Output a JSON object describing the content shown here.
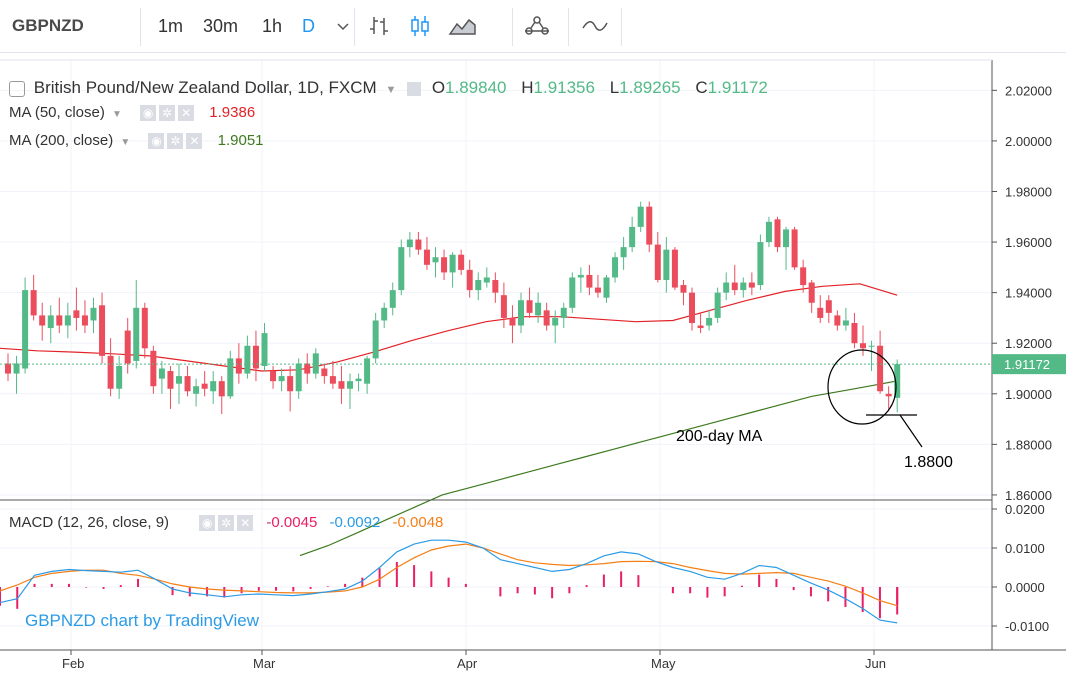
{
  "toolbar": {
    "symbol": "GBPNZD",
    "intervals": [
      {
        "label": "1m",
        "active": false
      },
      {
        "label": "30m",
        "active": false
      },
      {
        "label": "1h",
        "active": false
      },
      {
        "label": "D",
        "active": true
      }
    ],
    "icons": [
      "chevron-down-icon",
      "bar-style-icon",
      "candle-style-icon",
      "area-style-icon",
      "indicators-icon",
      "compare-icon"
    ]
  },
  "legend": {
    "title": "British Pound/New Zealand Dollar, 1D, FXCM",
    "o_label": "O",
    "o_value": "1.89840",
    "h_label": "H",
    "h_value": "1.91356",
    "l_label": "L",
    "l_value": "1.89265",
    "c_label": "C",
    "c_value": "1.91172",
    "ma50_label": "MA (50, close)",
    "ma50_value": "1.9386",
    "ma200_label": "MA (200, close)",
    "ma200_value": "1.9051",
    "macd_label": "MACD (12, 26, close, 9)",
    "macd_hist": "-0.0045",
    "macd_line": "-0.0092",
    "macd_signal": "-0.0048"
  },
  "colors": {
    "up": "#53b987",
    "down": "#eb4d5c",
    "ma50": "#e32227",
    "ma200": "#3d7a1f",
    "macd_line": "#2b9be6",
    "macd_signal": "#f57f17",
    "hist": "#e91e63",
    "watermark": "#2b9be6"
  },
  "annotations": {
    "ma200_note": "200-day MA",
    "support_level": "1.8800",
    "watermark": "GBPNZD chart by TradingView"
  },
  "chart_data": [
    {
      "type": "candlestick",
      "title": "British Pound/New Zealand Dollar, 1D, FXCM",
      "x_ticks": [
        "Feb",
        "Mar",
        "Apr",
        "May",
        "Jun"
      ],
      "y_ticks": [
        "2.02000",
        "2.00000",
        "1.98000",
        "1.96000",
        "1.94000",
        "1.92000",
        "1.90000",
        "1.88000",
        "1.86000"
      ],
      "ylim": [
        1.858,
        2.032
      ],
      "last_price_label": "1.91172",
      "candles": [
        [
          1.912,
          1.916,
          1.905,
          1.908
        ],
        [
          1.908,
          1.915,
          1.9,
          1.912
        ],
        [
          1.91,
          1.946,
          1.908,
          1.941
        ],
        [
          1.941,
          1.947,
          1.929,
          1.931
        ],
        [
          1.931,
          1.936,
          1.921,
          1.927
        ],
        [
          1.926,
          1.935,
          1.92,
          1.931
        ],
        [
          1.931,
          1.938,
          1.924,
          1.927
        ],
        [
          1.927,
          1.936,
          1.922,
          1.931
        ],
        [
          1.933,
          1.942,
          1.925,
          1.93
        ],
        [
          1.931,
          1.937,
          1.924,
          1.927
        ],
        [
          1.929,
          1.938,
          1.924,
          1.934
        ],
        [
          1.935,
          1.94,
          1.912,
          1.915
        ],
        [
          1.915,
          1.922,
          1.899,
          1.902
        ],
        [
          1.902,
          1.915,
          1.898,
          1.911
        ],
        [
          1.925,
          1.93,
          1.908,
          1.912
        ],
        [
          1.913,
          1.945,
          1.91,
          1.934
        ],
        [
          1.934,
          1.936,
          1.914,
          1.918
        ],
        [
          1.917,
          1.919,
          1.9,
          1.903
        ],
        [
          1.906,
          1.913,
          1.9,
          1.91
        ],
        [
          1.909,
          1.911,
          1.894,
          1.902
        ],
        [
          1.904,
          1.912,
          1.896,
          1.907
        ],
        [
          1.907,
          1.911,
          1.899,
          1.901
        ],
        [
          1.9,
          1.906,
          1.895,
          1.903
        ],
        [
          1.904,
          1.909,
          1.899,
          1.902
        ],
        [
          1.901,
          1.909,
          1.896,
          1.905
        ],
        [
          1.905,
          1.907,
          1.892,
          1.899
        ],
        [
          1.899,
          1.917,
          1.898,
          1.914
        ],
        [
          1.914,
          1.92,
          1.904,
          1.908
        ],
        [
          1.908,
          1.923,
          1.906,
          1.919
        ],
        [
          1.919,
          1.925,
          1.905,
          1.91
        ],
        [
          1.911,
          1.928,
          1.909,
          1.924
        ],
        [
          1.909,
          1.911,
          1.902,
          1.905
        ],
        [
          1.905,
          1.91,
          1.901,
          1.907
        ],
        [
          1.907,
          1.911,
          1.893,
          1.901
        ],
        [
          1.901,
          1.914,
          1.898,
          1.912
        ],
        [
          1.912,
          1.916,
          1.904,
          1.908
        ],
        [
          1.908,
          1.918,
          1.906,
          1.916
        ],
        [
          1.91,
          1.912,
          1.904,
          1.907
        ],
        [
          1.907,
          1.913,
          1.902,
          1.904
        ],
        [
          1.905,
          1.911,
          1.896,
          1.902
        ],
        [
          1.902,
          1.908,
          1.894,
          1.905
        ],
        [
          1.905,
          1.908,
          1.901,
          1.906
        ],
        [
          1.904,
          1.915,
          1.9,
          1.914
        ],
        [
          1.914,
          1.932,
          1.912,
          1.929
        ],
        [
          1.929,
          1.936,
          1.926,
          1.934
        ],
        [
          1.934,
          1.944,
          1.931,
          1.941
        ],
        [
          1.941,
          1.961,
          1.939,
          1.958
        ],
        [
          1.958,
          1.964,
          1.954,
          1.961
        ],
        [
          1.961,
          1.964,
          1.955,
          1.957
        ],
        [
          1.957,
          1.962,
          1.949,
          1.951
        ],
        [
          1.952,
          1.958,
          1.946,
          1.954
        ],
        [
          1.954,
          1.957,
          1.945,
          1.948
        ],
        [
          1.948,
          1.956,
          1.942,
          1.955
        ],
        [
          1.955,
          1.957,
          1.947,
          1.949
        ],
        [
          1.949,
          1.953,
          1.938,
          1.941
        ],
        [
          1.941,
          1.948,
          1.937,
          1.945
        ],
        [
          1.944,
          1.95,
          1.942,
          1.946
        ],
        [
          1.945,
          1.948,
          1.936,
          1.94
        ],
        [
          1.939,
          1.944,
          1.926,
          1.93
        ],
        [
          1.93,
          1.935,
          1.92,
          1.927
        ],
        [
          1.927,
          1.94,
          1.924,
          1.937
        ],
        [
          1.937,
          1.942,
          1.93,
          1.932
        ],
        [
          1.931,
          1.94,
          1.928,
          1.936
        ],
        [
          1.933,
          1.936,
          1.925,
          1.927
        ],
        [
          1.927,
          1.933,
          1.92,
          1.93
        ],
        [
          1.93,
          1.936,
          1.926,
          1.934
        ],
        [
          1.934,
          1.948,
          1.932,
          1.946
        ],
        [
          1.946,
          1.95,
          1.94,
          1.947
        ],
        [
          1.947,
          1.951,
          1.939,
          1.942
        ],
        [
          1.942,
          1.947,
          1.938,
          1.94
        ],
        [
          1.938,
          1.947,
          1.936,
          1.946
        ],
        [
          1.946,
          1.956,
          1.944,
          1.954
        ],
        [
          1.954,
          1.962,
          1.949,
          1.958
        ],
        [
          1.958,
          1.97,
          1.956,
          1.966
        ],
        [
          1.966,
          1.976,
          1.964,
          1.974
        ],
        [
          1.974,
          1.976,
          1.956,
          1.959
        ],
        [
          1.959,
          1.964,
          1.944,
          1.945
        ],
        [
          1.945,
          1.962,
          1.94,
          1.957
        ],
        [
          1.957,
          1.958,
          1.941,
          1.942
        ],
        [
          1.943,
          1.945,
          1.935,
          1.94
        ],
        [
          1.94,
          1.942,
          1.925,
          1.928
        ],
        [
          1.927,
          1.932,
          1.924,
          1.926
        ],
        [
          1.927,
          1.933,
          1.925,
          1.93
        ],
        [
          1.93,
          1.942,
          1.928,
          1.94
        ],
        [
          1.94,
          1.948,
          1.937,
          1.944
        ],
        [
          1.944,
          1.951,
          1.939,
          1.941
        ],
        [
          1.941,
          1.946,
          1.938,
          1.944
        ],
        [
          1.944,
          1.948,
          1.939,
          1.942
        ],
        [
          1.943,
          1.963,
          1.941,
          1.96
        ],
        [
          1.96,
          1.97,
          1.958,
          1.968
        ],
        [
          1.969,
          1.97,
          1.956,
          1.958
        ],
        [
          1.958,
          1.966,
          1.949,
          1.965
        ],
        [
          1.965,
          1.966,
          1.949,
          1.95
        ],
        [
          1.95,
          1.953,
          1.94,
          1.943
        ],
        [
          1.944,
          1.945,
          1.932,
          1.936
        ],
        [
          1.934,
          1.939,
          1.928,
          1.93
        ],
        [
          1.937,
          1.939,
          1.928,
          1.932
        ],
        [
          1.931,
          1.933,
          1.925,
          1.927
        ],
        [
          1.927,
          1.934,
          1.925,
          1.929
        ],
        [
          1.928,
          1.932,
          1.918,
          1.92
        ],
        [
          1.92,
          1.927,
          1.915,
          1.918
        ],
        [
          1.919,
          1.921,
          1.909,
          1.919
        ],
        [
          1.919,
          1.925,
          1.9,
          1.901
        ],
        [
          1.9,
          1.903,
          1.893,
          1.899
        ],
        [
          1.8984,
          1.91356,
          1.89265,
          1.91172
        ]
      ],
      "ma50": [
        1.918,
        1.917,
        1.9165,
        1.9158,
        1.915,
        1.913,
        1.911,
        1.909,
        1.9095,
        1.9125,
        1.9165,
        1.921,
        1.925,
        1.9285,
        1.9305,
        1.9305,
        1.9295,
        1.9285,
        1.929,
        1.933,
        1.937,
        1.9405,
        1.9425,
        1.9435,
        1.939
      ],
      "ma200": [
        1.836,
        1.84,
        1.845,
        1.85,
        1.855,
        1.86,
        1.863,
        1.866,
        1.869,
        1.872,
        1.875,
        1.878,
        1.881,
        1.884,
        1.887,
        1.89,
        1.893,
        1.896,
        1.899,
        1.901,
        1.903,
        1.9051
      ]
    },
    {
      "type": "line",
      "title": "MACD (12, 26, close, 9)",
      "y_ticks": [
        "0.0200",
        "0.0100",
        "0.0000",
        "-0.0100"
      ],
      "ylim": [
        -0.0145,
        0.0205
      ],
      "series": [
        {
          "name": "MACD",
          "values": [
            -0.004,
            -0.003,
            0.003,
            0.004,
            0.0045,
            0.0042,
            0.004,
            0.0038,
            0.0043,
            0.002,
            -0.0005,
            -0.0015,
            -0.002,
            -0.0025,
            -0.002,
            -0.0018,
            -0.002,
            -0.0022,
            -0.0018,
            -0.0012,
            -0.0005,
            0.0015,
            0.005,
            0.009,
            0.011,
            0.012,
            0.012,
            0.0115,
            0.01,
            0.007,
            0.006,
            0.005,
            0.004,
            0.0045,
            0.006,
            0.008,
            0.009,
            0.0085,
            0.0065,
            0.005,
            0.004,
            0.0025,
            0.002,
            0.0035,
            0.0055,
            0.005,
            0.003,
            0.001,
            -0.0008,
            -0.003,
            -0.0055,
            -0.0085,
            -0.0092
          ]
        },
        {
          "name": "Signal",
          "values": [
            -0.001,
            0.0005,
            0.0025,
            0.0035,
            0.004,
            0.0043,
            0.0043,
            0.0035,
            0.003,
            0.002,
            0.0008,
            0.0,
            -0.0005,
            -0.0008,
            -0.001,
            -0.0012,
            -0.0014,
            -0.0015,
            -0.0015,
            -0.0013,
            -0.001,
            0.0,
            0.002,
            0.005,
            0.0075,
            0.0095,
            0.0105,
            0.011,
            0.01,
            0.0085,
            0.007,
            0.0062,
            0.0058,
            0.0055,
            0.0057,
            0.006,
            0.0065,
            0.0066,
            0.0065,
            0.006,
            0.005,
            0.0042,
            0.0035,
            0.0033,
            0.0035,
            0.0037,
            0.0035,
            0.0025,
            0.0015,
            0.0002,
            -0.0015,
            -0.0035,
            -0.0048
          ]
        }
      ],
      "histogram": [
        -0.0045
      ]
    }
  ]
}
